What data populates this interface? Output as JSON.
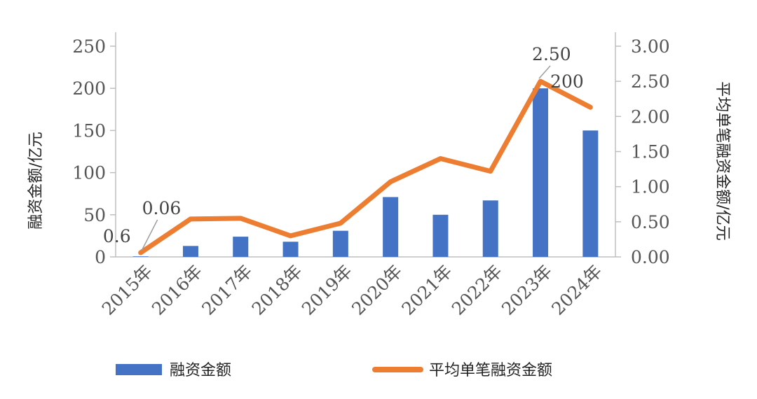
{
  "chart_data": {
    "type": "bar",
    "categories": [
      "2015年",
      "2016年",
      "2017年",
      "2018年",
      "2019年",
      "2020年",
      "2021年",
      "2022年",
      "2023年",
      "2024年"
    ],
    "series": [
      {
        "name": "融资金额",
        "type": "bar",
        "axis": "left",
        "color": "#4472C4",
        "values": [
          0.6,
          13,
          24,
          18,
          31,
          71,
          50,
          67,
          200,
          150
        ]
      },
      {
        "name": "平均单笔融资金额",
        "type": "line",
        "axis": "right",
        "color": "#ED7D31",
        "values": [
          0.06,
          0.54,
          0.55,
          0.3,
          0.48,
          1.07,
          1.4,
          1.22,
          2.5,
          2.13
        ]
      }
    ],
    "ylabel": "融资金额/亿元",
    "ylabel_right": "平均单笔融资金额/亿元",
    "ylim": [
      0,
      250
    ],
    "ylim_right": [
      0,
      3
    ],
    "yticks": [
      "0",
      "50",
      "100",
      "150",
      "200",
      "250"
    ],
    "yticks_right": [
      "0.00",
      "0.50",
      "1.00",
      "1.50",
      "2.00",
      "2.50",
      "3.00"
    ],
    "annotations": [
      "0.6",
      "0.06",
      "2.50",
      "200"
    ],
    "legend": [
      "融资金额",
      "平均单笔融资金额"
    ],
    "legend_position": "bottom",
    "grid": false
  }
}
